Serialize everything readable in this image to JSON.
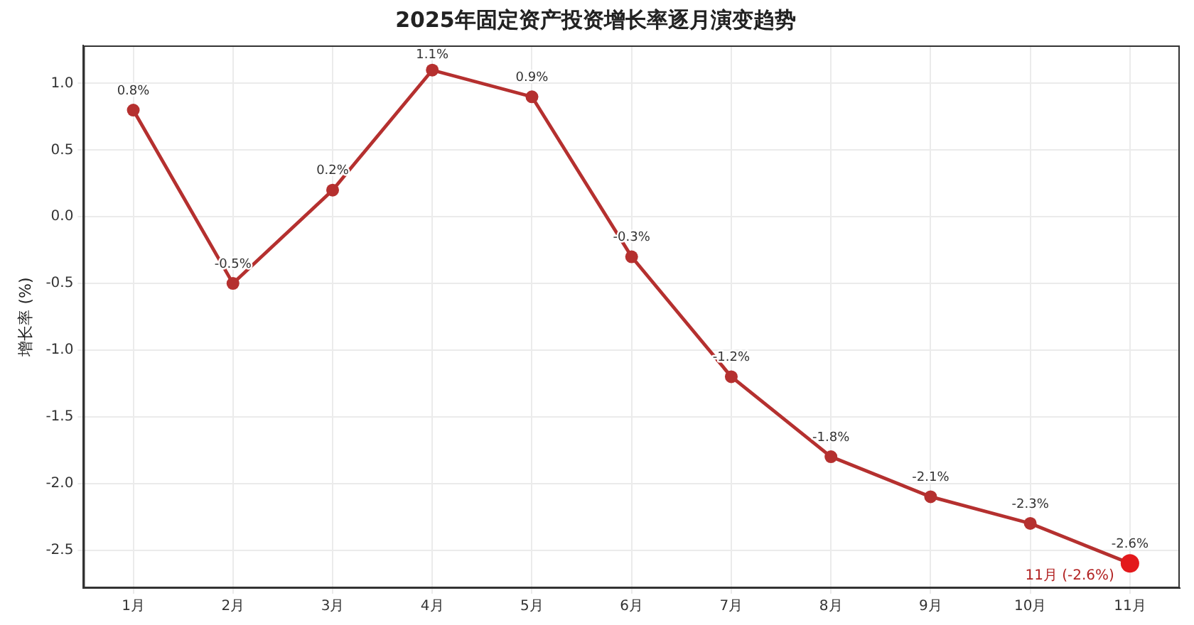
{
  "chart_data": {
    "type": "line",
    "title": "2025年固定资产投资增长率逐月演变趋势",
    "ylabel": "增长率 (%)",
    "categories": [
      "1月",
      "2月",
      "3月",
      "4月",
      "5月",
      "6月",
      "7月",
      "8月",
      "9月",
      "10月",
      "11月"
    ],
    "series": [
      {
        "type": "line",
        "color": "#b5302f",
        "values": [
          0.8,
          -0.5,
          0.2,
          1.1,
          0.9,
          -0.3,
          -1.2,
          -1.8,
          -2.1,
          -2.3,
          -2.6
        ],
        "value_labels": [
          "0.8%",
          "-0.5%",
          "0.2%",
          "1.1%",
          "0.9%",
          "-0.3%",
          "-1.2%",
          "-1.8%",
          "-2.1%",
          "-2.3%",
          "-2.6%"
        ]
      },
      {
        "type": "scatter",
        "color": "#e3191c",
        "x": [
          "11月"
        ],
        "values": [
          -2.6
        ]
      }
    ],
    "ylim": [
      -2.785,
      1.285
    ],
    "yticks": [
      {
        "value": -2.5,
        "label": "-2.5"
      },
      {
        "value": -2,
        "label": "-2.0"
      },
      {
        "value": -1.5,
        "label": "-1.5"
      },
      {
        "value": -1,
        "label": "-1.0"
      },
      {
        "value": -0.5,
        "label": "-0.5"
      },
      {
        "value": 0,
        "label": "0.0"
      },
      {
        "value": 0.5,
        "label": "0.5"
      },
      {
        "value": 1,
        "label": "1.0"
      }
    ],
    "grid": true,
    "legend": false,
    "marker": "circle",
    "line_style": "solid",
    "annotations": [
      {
        "text": "11月 (-2.6%)",
        "x": "11月",
        "y": -2.6
      }
    ]
  }
}
